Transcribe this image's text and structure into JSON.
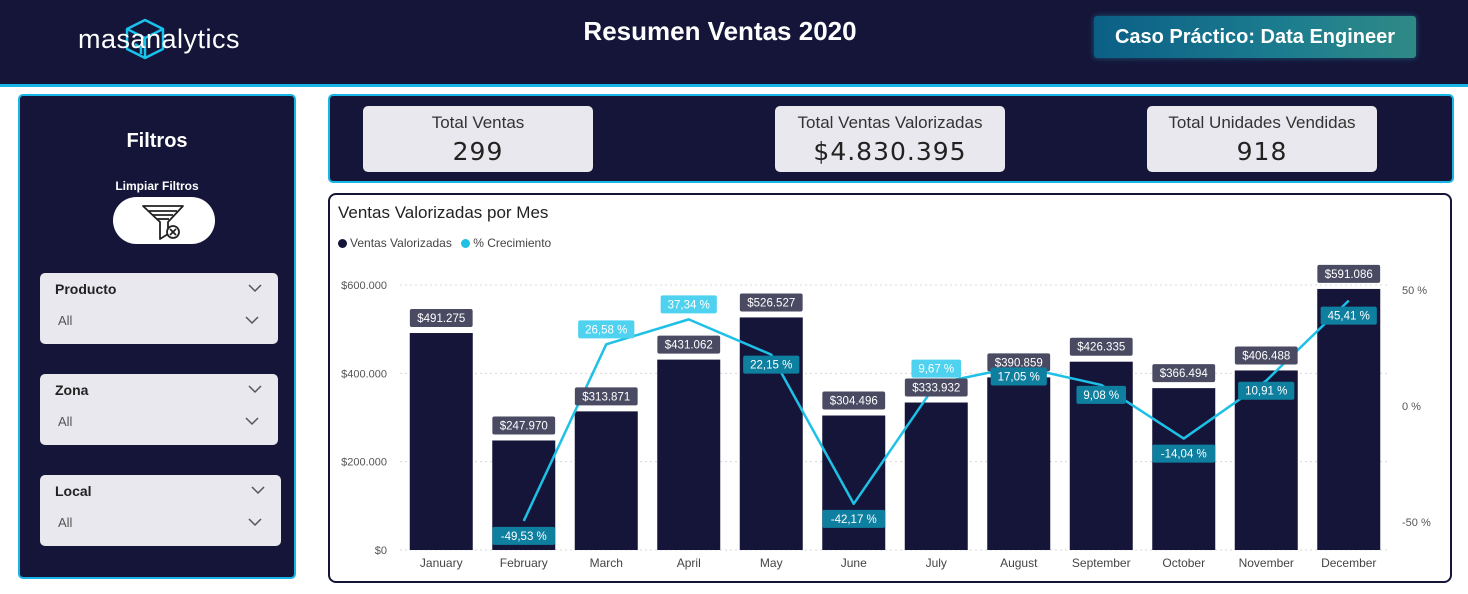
{
  "header": {
    "logo_text": "masanalytics",
    "title": "Resumen Ventas 2020",
    "case_button": "Caso Práctico: Data Engineer"
  },
  "filters": {
    "title": "Filtros",
    "clear_label": "Limpiar Filtros",
    "slicers": [
      {
        "label": "Producto",
        "value": "All"
      },
      {
        "label": "Zona",
        "value": "All"
      },
      {
        "label": "Local",
        "value": "All"
      }
    ]
  },
  "kpis": [
    {
      "label": "Total Ventas",
      "value": "299"
    },
    {
      "label": "Total Ventas Valorizadas",
      "value": "$4.830.395"
    },
    {
      "label": "Total Unidades Vendidas",
      "value": "918"
    }
  ],
  "colors": {
    "navy": "#151539",
    "accent": "#18b6e6",
    "line": "#1ec0e6",
    "label_dark": "#4a4a63",
    "label_teal": "#0e7f9f",
    "label_light": "#4fd2ef"
  },
  "chart_data": {
    "type": "bar",
    "title": "Ventas Valorizadas por Mes",
    "legend": [
      "Ventas Valorizadas",
      "% Crecimiento"
    ],
    "legend_position": "top-left",
    "categories": [
      "January",
      "February",
      "March",
      "April",
      "May",
      "June",
      "July",
      "August",
      "September",
      "October",
      "November",
      "December"
    ],
    "series": [
      {
        "name": "Ventas Valorizadas",
        "type": "bar",
        "axis": "left",
        "values": [
          491275,
          247970,
          313871,
          431062,
          526527,
          304496,
          333932,
          390859,
          426335,
          366494,
          406488,
          591086
        ],
        "labels": [
          "$491.275",
          "$247.970",
          "$313.871",
          "$431.062",
          "$526.527",
          "$304.496",
          "$333.932",
          "$390.859",
          "$426.335",
          "$366.494",
          "$406.488",
          "$591.086"
        ]
      },
      {
        "name": "% Crecimiento",
        "type": "line",
        "axis": "right",
        "values": [
          null,
          -49.53,
          26.58,
          37.34,
          22.15,
          -42.17,
          9.67,
          17.05,
          9.08,
          -14.04,
          10.91,
          45.41
        ],
        "labels": [
          null,
          "-49,53 %",
          "26,58 %",
          "37,34 %",
          "22,15 %",
          "-42,17 %",
          "9,67 %",
          "17,05 %",
          "9,08 %",
          "-14,04 %",
          "10,91 %",
          "45,41 %"
        ]
      }
    ],
    "y_left": {
      "ticks": [
        0,
        200000,
        400000,
        600000
      ],
      "tick_labels": [
        "$0",
        "$200.000",
        "$400.000",
        "$600.000"
      ],
      "range": [
        0,
        600000
      ]
    },
    "y_right": {
      "ticks": [
        -50,
        0,
        50
      ],
      "tick_labels": [
        "-50 %",
        "0 %",
        "50 %"
      ],
      "range": [
        -50,
        50
      ]
    },
    "grid": true
  }
}
